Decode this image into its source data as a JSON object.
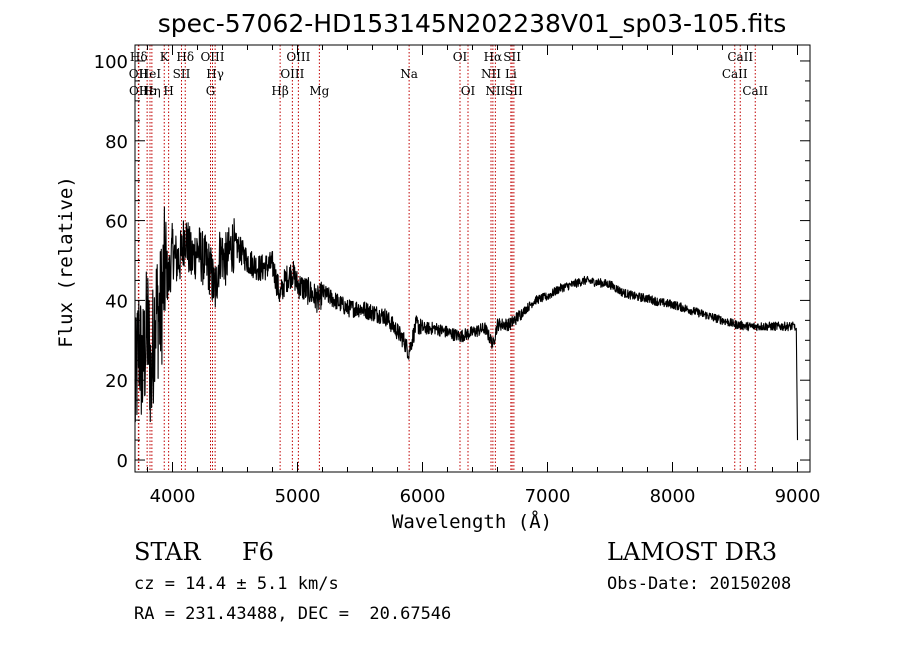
{
  "chart_data": {
    "type": "line",
    "title": "spec-57062-HD153145N202238V01_sp03-105.fits",
    "xlabel": "Wavelength (Å)",
    "ylabel": "Flux (relative)",
    "xlim": [
      3700,
      9100
    ],
    "ylim": [
      -3,
      104
    ],
    "x_ticks": [
      4000,
      5000,
      6000,
      7000,
      8000,
      9000
    ],
    "y_ticks": [
      0,
      20,
      40,
      60,
      80,
      100
    ],
    "grid": false,
    "spectrum_anchors": {
      "x": [
        3700,
        3730,
        3760,
        3800,
        3830,
        3860,
        3900,
        3940,
        3970,
        4000,
        4030,
        4070,
        4100,
        4150,
        4200,
        4250,
        4300,
        4340,
        4380,
        4430,
        4480,
        4530,
        4600,
        4700,
        4800,
        4861,
        4900,
        4960,
        5000,
        5100,
        5170,
        5200,
        5300,
        5400,
        5500,
        5600,
        5700,
        5780,
        5850,
        5890,
        5950,
        6000,
        6100,
        6200,
        6300,
        6400,
        6500,
        6563,
        6600,
        6700,
        6800,
        6900,
        7000,
        7100,
        7200,
        7300,
        7400,
        7500,
        7600,
        7700,
        7800,
        7900,
        8000,
        8100,
        8200,
        8300,
        8400,
        8500,
        8600,
        8700,
        8800,
        8900,
        8980,
        9000
      ],
      "y": [
        15,
        30,
        22,
        34,
        20,
        38,
        36,
        48,
        45,
        53,
        50,
        51,
        57,
        50,
        53,
        50,
        48,
        42,
        52,
        50,
        54,
        53,
        50,
        48,
        49,
        41,
        45,
        47,
        44,
        42,
        40,
        42,
        40,
        38,
        38,
        37,
        36,
        33,
        30,
        27,
        34,
        33,
        33,
        32,
        31,
        32,
        33,
        29,
        34,
        34,
        37,
        40,
        41,
        43,
        44,
        45,
        44.5,
        44,
        42,
        41,
        40.5,
        39.5,
        39,
        38,
        37,
        36,
        35,
        34,
        33.5,
        33.5,
        33.5,
        33.5,
        33.5,
        5
      ]
    },
    "spectral_lines": [
      {
        "name": "Hδ",
        "wavelength": 3730,
        "row": 1
      },
      {
        "name": "OII",
        "wavelength": 3727,
        "row": 2
      },
      {
        "name": "OII",
        "wavelength": 3729,
        "row": 3
      },
      {
        "name": "Hε",
        "wavelength": 3797,
        "row": 3
      },
      {
        "name": "HeI",
        "wavelength": 3820,
        "row": 2
      },
      {
        "name": "Hη",
        "wavelength": 3835,
        "row": 3
      },
      {
        "name": "K",
        "wavelength": 3934,
        "row": 1
      },
      {
        "name": "H",
        "wavelength": 3969,
        "row": 3
      },
      {
        "name": "SII",
        "wavelength": 4072,
        "row": 2
      },
      {
        "name": "Hδ",
        "wavelength": 4102,
        "row": 1
      },
      {
        "name": "OIII",
        "wavelength": 4320,
        "row": 1
      },
      {
        "name": "Hγ",
        "wavelength": 4341,
        "row": 2
      },
      {
        "name": "G",
        "wavelength": 4304,
        "row": 3
      },
      {
        "name": "Hβ",
        "wavelength": 4861,
        "row": 3
      },
      {
        "name": "OIII",
        "wavelength": 4959,
        "row": 2
      },
      {
        "name": "OIII",
        "wavelength": 5007,
        "row": 1
      },
      {
        "name": "Mg",
        "wavelength": 5175,
        "row": 3
      },
      {
        "name": "Na",
        "wavelength": 5893,
        "row": 2
      },
      {
        "name": "OI",
        "wavelength": 6300,
        "row": 1
      },
      {
        "name": "OI",
        "wavelength": 6364,
        "row": 3
      },
      {
        "name": "Hα",
        "wavelength": 6563,
        "row": 1
      },
      {
        "name": "NII",
        "wavelength": 6548,
        "row": 2
      },
      {
        "name": "NII",
        "wavelength": 6583,
        "row": 3
      },
      {
        "name": "SII",
        "wavelength": 6717,
        "row": 1
      },
      {
        "name": "Li",
        "wavelength": 6707,
        "row": 2
      },
      {
        "name": "SII",
        "wavelength": 6731,
        "row": 3
      },
      {
        "name": "CaII",
        "wavelength": 8542,
        "row": 1
      },
      {
        "name": "CaII",
        "wavelength": 8498,
        "row": 2
      },
      {
        "name": "CaII",
        "wavelength": 8662,
        "row": 3
      }
    ]
  },
  "info": {
    "object_class": "STAR",
    "subclass": "F6",
    "survey": "LAMOST DR3",
    "redshift": "cz = 14.4 ± 5.1 km/s",
    "obs_date": "Obs-Date: 20150208",
    "coords": "RA = 231.43488, DEC =  20.67546"
  },
  "colors": {
    "spectrum": "#000000",
    "line_marker": "#c00000",
    "axes": "#000000"
  }
}
